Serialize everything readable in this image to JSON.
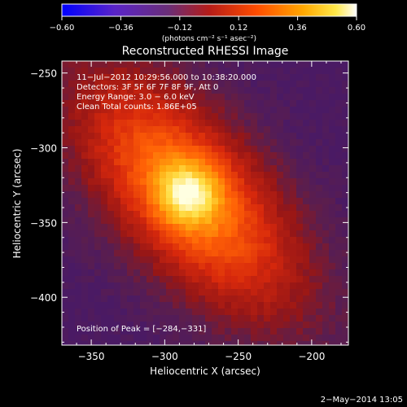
{
  "chart_data": {
    "type": "heatmap",
    "title": "Reconstructed RHESSI Image",
    "xlabel": "Heliocentric X (arcsec)",
    "ylabel": "Heliocentric Y (arcsec)",
    "xlim": [
      -370,
      -175
    ],
    "ylim": [
      -432,
      -242
    ],
    "x_ticks": [
      {
        "value": -350,
        "label": "−350"
      },
      {
        "value": -300,
        "label": "−300"
      },
      {
        "value": -250,
        "label": "−250"
      },
      {
        "value": -200,
        "label": "−200"
      }
    ],
    "y_ticks": [
      {
        "value": -250,
        "label": "−250"
      },
      {
        "value": -300,
        "label": "−300"
      },
      {
        "value": -350,
        "label": "−350"
      },
      {
        "value": -400,
        "label": "−400"
      }
    ],
    "colorbar": {
      "min": -0.6,
      "max": 0.6,
      "ticks": [
        {
          "value": -0.6,
          "label": "−0.60"
        },
        {
          "value": -0.36,
          "label": "−0.36"
        },
        {
          "value": -0.12,
          "label": "−0.12"
        },
        {
          "value": 0.12,
          "label": "0.12"
        },
        {
          "value": 0.36,
          "label": "0.36"
        },
        {
          "value": 0.6,
          "label": "0.60"
        }
      ],
      "unit_label": "(photons cm⁻² s⁻¹ asec⁻²)"
    },
    "annotations": [
      "11−Jul−2012 10:29:56.000 to 10:38:20.000",
      "Detectors: 3F 5F 6F 7F 8F 9F, Att 0",
      "Energy Range: 3.0 − 6.0 keV",
      "Clean    Total counts: 1.86E+05"
    ],
    "peak_label": "Position of Peak = [−284,−331]",
    "peak": {
      "x": -284,
      "y": -331,
      "value": 0.6
    },
    "footer_date": "2−May−2014 13:05"
  }
}
